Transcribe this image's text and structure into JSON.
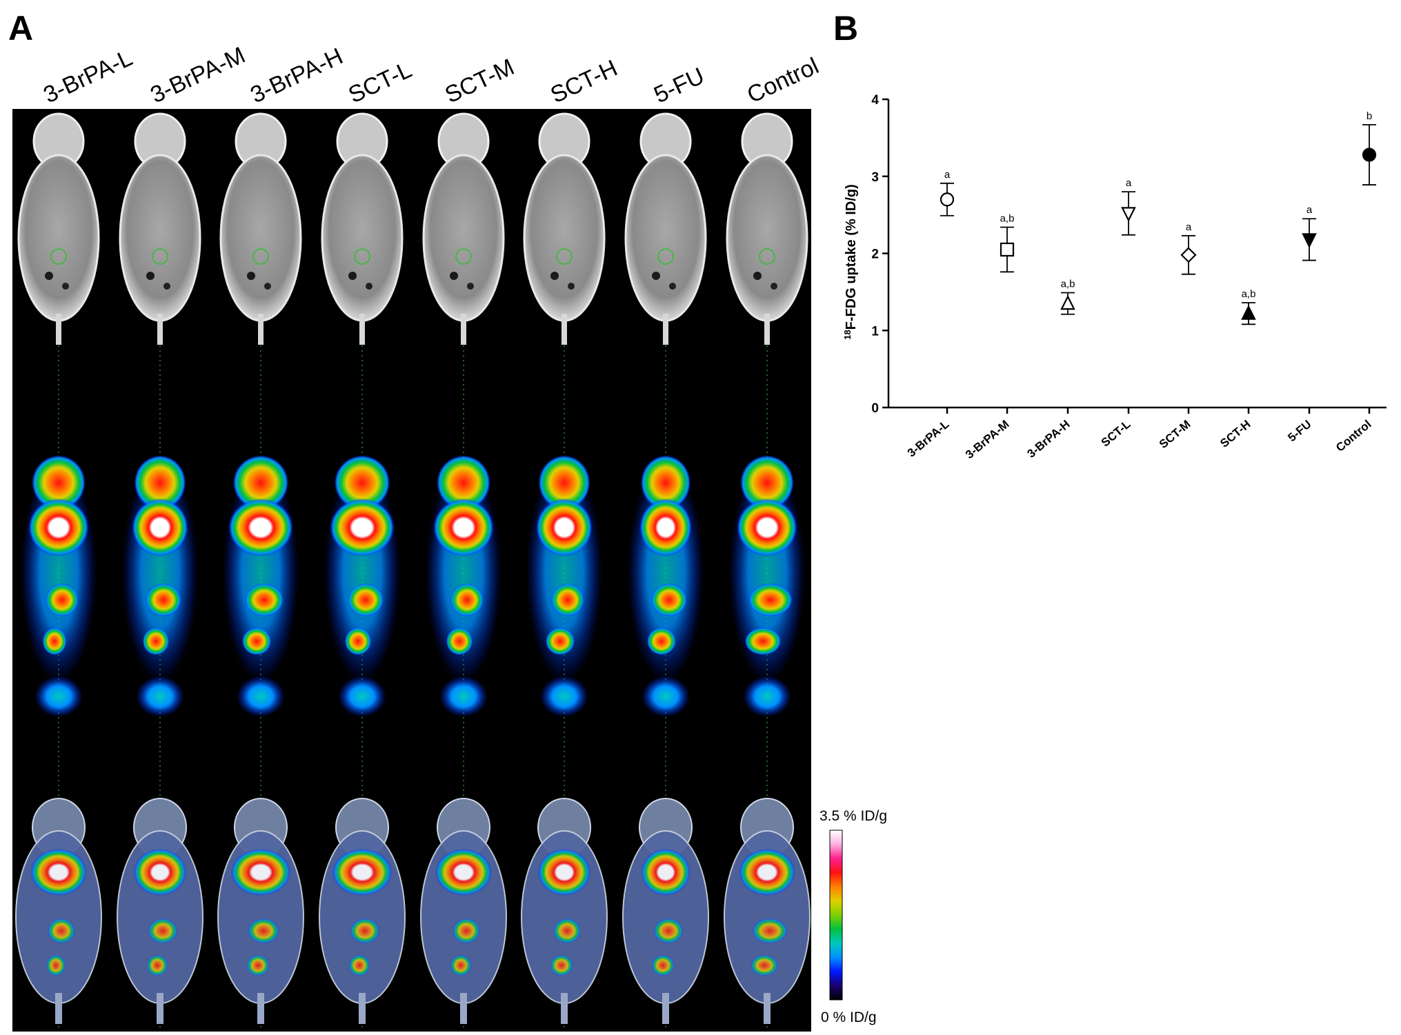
{
  "panel_a": {
    "letter": "A",
    "groups": [
      "3-BrPA-L",
      "3-BrPA-M",
      "3-BrPA-H",
      "SCT-L",
      "SCT-M",
      "SCT-H",
      "5-FU",
      "Control"
    ],
    "colorbar": {
      "max_label": "3.5 % ID/g",
      "min_label": "0 % ID/g",
      "colors": [
        "#000000",
        "#1a0070",
        "#0018ff",
        "#0090ff",
        "#00c8c0",
        "#00c040",
        "#80d000",
        "#e0d000",
        "#ff8000",
        "#ff1010",
        "#ff2090",
        "#ffb0e0",
        "#ffffff"
      ]
    }
  },
  "panel_b": {
    "letter": "B"
  },
  "chart_data": {
    "type": "scatter",
    "ylabel_sup": "18",
    "ylabel_main": "F-FDG uptake (% ID/g)",
    "xlabel": "",
    "ylim": [
      0,
      4
    ],
    "yticks": [
      "0",
      "1",
      "2",
      "3",
      "4"
    ],
    "categories": [
      "3-BrPA-L",
      "3-BrPA-M",
      "3-BrPA-H",
      "SCT-L",
      "SCT-M",
      "SCT-H",
      "5-FU",
      "Control"
    ],
    "values": [
      2.7,
      2.05,
      1.35,
      2.52,
      1.98,
      1.22,
      2.18,
      3.28
    ],
    "errors": [
      0.21,
      0.29,
      0.14,
      0.28,
      0.25,
      0.14,
      0.27,
      0.39
    ],
    "significance": [
      "a",
      "a,b",
      "a,b",
      "a",
      "a",
      "a,b",
      "a",
      "b"
    ],
    "markers": [
      "circle-open",
      "square-open",
      "triangle-up-open",
      "triangle-down-open",
      "diamond-open",
      "triangle-up-filled",
      "triangle-down-filled",
      "circle-filled"
    ],
    "grid": false
  }
}
